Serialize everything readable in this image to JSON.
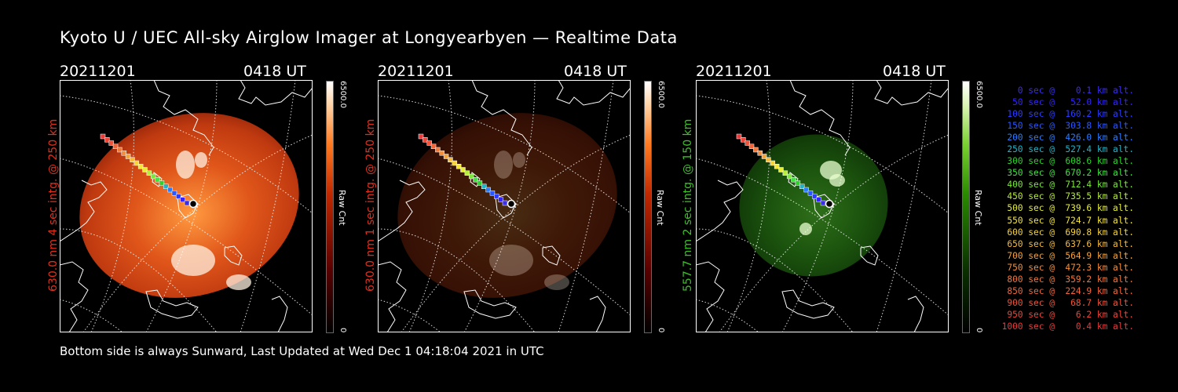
{
  "title": "Kyoto U / UEC All-sky Airglow Imager at Longyearbyen — Realtime Data",
  "footer": "Bottom side is always Sunward, Last Updated at Wed Dec  1 04:18:04 2021 in UTC",
  "panels": [
    {
      "date": "20211201",
      "time": "0418 UT",
      "vertical_label": "630.0 nm 4 sec intg. @ 250 km",
      "label_color": "#e0301c",
      "colorbar_max": "6500.0",
      "colorbar_min": "0",
      "colorbar_unit": "Raw Cnt",
      "colormap": "red",
      "intensity": 1.0
    },
    {
      "date": "20211201",
      "time": "0418 UT",
      "vertical_label": "630.0 nm 1 sec intg. @ 250 km",
      "label_color": "#e0301c",
      "colorbar_max": "6500.0",
      "colorbar_min": "0",
      "colorbar_unit": "Raw Cnt",
      "colormap": "red",
      "intensity": 0.28
    },
    {
      "date": "20211201",
      "time": "0418 UT",
      "vertical_label": "557.7 nm 2 sec intg. @ 150 km",
      "label_color": "#3fbf2a",
      "colorbar_max": "6500.0",
      "colorbar_min": "0",
      "colorbar_unit": "Raw Cnt",
      "colormap": "green",
      "intensity": 0.8
    }
  ],
  "legend": [
    {
      "text": "   0 sec @    0.1 km alt.",
      "color": "#3a2ee8"
    },
    {
      "text": "  50 sec @   52.0 km alt.",
      "color": "#3424ff"
    },
    {
      "text": " 100 sec @  160.2 km alt.",
      "color": "#2c3cff"
    },
    {
      "text": " 150 sec @  303.8 km alt.",
      "color": "#2a58ff"
    },
    {
      "text": " 200 sec @  426.0 km alt.",
      "color": "#2a7cff"
    },
    {
      "text": " 250 sec @  527.4 km alt.",
      "color": "#20b4c8"
    },
    {
      "text": " 300 sec @  608.6 km alt.",
      "color": "#2ad42a"
    },
    {
      "text": " 350 sec @  670.2 km alt.",
      "color": "#3ee63e"
    },
    {
      "text": " 400 sec @  712.4 km alt.",
      "color": "#7ae83a"
    },
    {
      "text": " 450 sec @  735.5 km alt.",
      "color": "#b8ec3a"
    },
    {
      "text": " 500 sec @  739.6 km alt.",
      "color": "#e6ee3a"
    },
    {
      "text": " 550 sec @  724.7 km alt.",
      "color": "#f4e63a"
    },
    {
      "text": " 600 sec @  690.8 km alt.",
      "color": "#f6d43a"
    },
    {
      "text": " 650 sec @  637.6 km alt.",
      "color": "#f6bc3a"
    },
    {
      "text": " 700 sec @  564.9 km alt.",
      "color": "#f6a43a"
    },
    {
      "text": " 750 sec @  472.3 km alt.",
      "color": "#f48e3a"
    },
    {
      "text": " 800 sec @  359.2 km alt.",
      "color": "#f2783a"
    },
    {
      "text": " 850 sec @  224.9 km alt.",
      "color": "#f0663a"
    },
    {
      "text": " 900 sec @   68.7 km alt.",
      "color": "#ee543a"
    },
    {
      "text": " 950 sec @    6.2 km alt.",
      "color": "#ec463a"
    },
    {
      "text": "1000 sec @    0.4 km alt.",
      "color": "#ea3a3a"
    }
  ]
}
